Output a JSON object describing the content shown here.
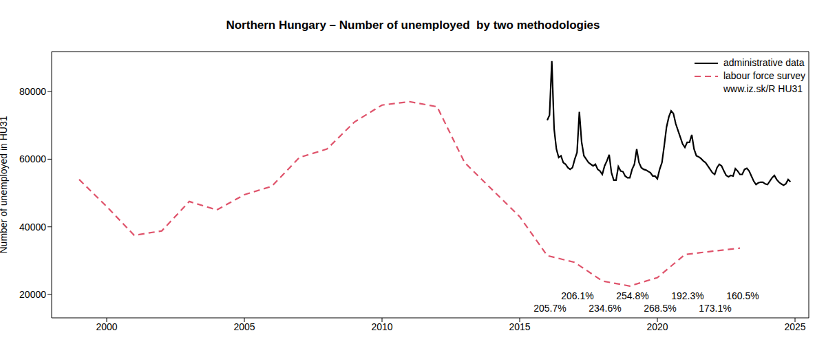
{
  "chart_data": {
    "type": "line",
    "title": "Northern Hungary – Number of unemployed  by two methodologies",
    "y_label": "Number of unemployed in HU31",
    "source": "www.iz.sk/R HU31",
    "legend": "top-right",
    "grid": false,
    "xlim": [
      1998,
      2025.5
    ],
    "xticks": [
      2000,
      2005,
      2010,
      2015,
      2020,
      2025
    ],
    "ylim": [
      13100,
      91800
    ],
    "yticks": [
      20000,
      40000,
      60000,
      80000
    ],
    "series": [
      {
        "name": "administrative data",
        "color": "#000000",
        "line_style": "solid",
        "x": [
          2016,
          2016.083,
          2016.167,
          2016.25,
          2016.333,
          2016.417,
          2016.5,
          2016.583,
          2016.667,
          2016.75,
          2016.833,
          2016.917,
          2017,
          2017.083,
          2017.167,
          2017.25,
          2017.333,
          2017.417,
          2017.5,
          2017.583,
          2017.667,
          2017.75,
          2017.833,
          2017.917,
          2018,
          2018.083,
          2018.167,
          2018.25,
          2018.333,
          2018.417,
          2018.5,
          2018.583,
          2018.667,
          2018.75,
          2018.833,
          2018.917,
          2019,
          2019.083,
          2019.167,
          2019.25,
          2019.333,
          2019.417,
          2019.5,
          2019.583,
          2019.667,
          2019.75,
          2019.833,
          2019.917,
          2020,
          2020.083,
          2020.167,
          2020.25,
          2020.333,
          2020.417,
          2020.5,
          2020.583,
          2020.667,
          2020.75,
          2020.833,
          2020.917,
          2021,
          2021.083,
          2021.167,
          2021.25,
          2021.333,
          2021.417,
          2021.5,
          2021.583,
          2021.667,
          2021.75,
          2021.833,
          2021.917,
          2022,
          2022.083,
          2022.167,
          2022.25,
          2022.333,
          2022.417,
          2022.5,
          2022.583,
          2022.667,
          2022.75,
          2022.833,
          2022.917,
          2023,
          2023.083,
          2023.167,
          2023.25,
          2023.333,
          2023.417,
          2023.5,
          2023.583,
          2023.667,
          2023.75,
          2023.833,
          2023.917,
          2024,
          2024.083,
          2024.167,
          2024.25,
          2024.333,
          2024.417,
          2024.5,
          2024.583,
          2024.667,
          2024.75,
          2024.833
        ],
        "values": [
          71500,
          73000,
          89000,
          69000,
          63000,
          60500,
          61000,
          59000,
          58500,
          57500,
          57000,
          57500,
          60000,
          62000,
          74000,
          65000,
          61000,
          60000,
          59000,
          58500,
          58000,
          58500,
          57000,
          56500,
          55500,
          58000,
          59500,
          61300,
          56000,
          53800,
          53800,
          57800,
          56500,
          56300,
          55000,
          54500,
          54500,
          57000,
          58500,
          63000,
          59000,
          57500,
          57000,
          56800,
          56400,
          56000,
          55000,
          55000,
          54200,
          57000,
          59000,
          64000,
          69500,
          72500,
          74300,
          73500,
          70500,
          68500,
          66500,
          64500,
          63500,
          65000,
          65000,
          67200,
          63000,
          61000,
          60700,
          60200,
          59500,
          59000,
          58000,
          57000,
          56000,
          55500,
          57500,
          58500,
          58000,
          56500,
          55200,
          54800,
          55200,
          55000,
          57200,
          56500,
          55500,
          55500,
          57000,
          57300,
          56500,
          55000,
          53500,
          52500,
          53000,
          53200,
          53200,
          52700,
          52500,
          53500,
          54500,
          55200,
          54000,
          53200,
          52700,
          52300,
          52700,
          54000,
          53300
        ]
      },
      {
        "name": "labour force survey",
        "color": "#df536b",
        "line_style": "dashed",
        "x": [
          1999,
          2000,
          2001,
          2002,
          2003,
          2004,
          2005,
          2006,
          2007,
          2008,
          2009,
          2010,
          2011,
          2012,
          2013,
          2014,
          2015,
          2016,
          2017,
          2018,
          2019,
          2020,
          2021,
          2022,
          2023
        ],
        "values": [
          54000,
          46000,
          37500,
          38800,
          47500,
          45000,
          49500,
          52000,
          60500,
          63000,
          71000,
          76000,
          77000,
          75500,
          59000,
          51000,
          43000,
          31500,
          29500,
          24000,
          22500,
          25000,
          31800,
          32800,
          33700
        ]
      }
    ],
    "annotations": [
      {
        "x": 2016.1,
        "y": 15900,
        "text": "205.7%"
      },
      {
        "x": 2017.1,
        "y": 19600,
        "text": "206.1%"
      },
      {
        "x": 2018.1,
        "y": 15900,
        "text": "234.6%"
      },
      {
        "x": 2019.1,
        "y": 19600,
        "text": "254.8%"
      },
      {
        "x": 2020.1,
        "y": 15900,
        "text": "268.5%"
      },
      {
        "x": 2021.1,
        "y": 19600,
        "text": "192.3%"
      },
      {
        "x": 2022.1,
        "y": 15900,
        "text": "173.1%"
      },
      {
        "x": 2023.1,
        "y": 19600,
        "text": "160.5%"
      }
    ]
  }
}
